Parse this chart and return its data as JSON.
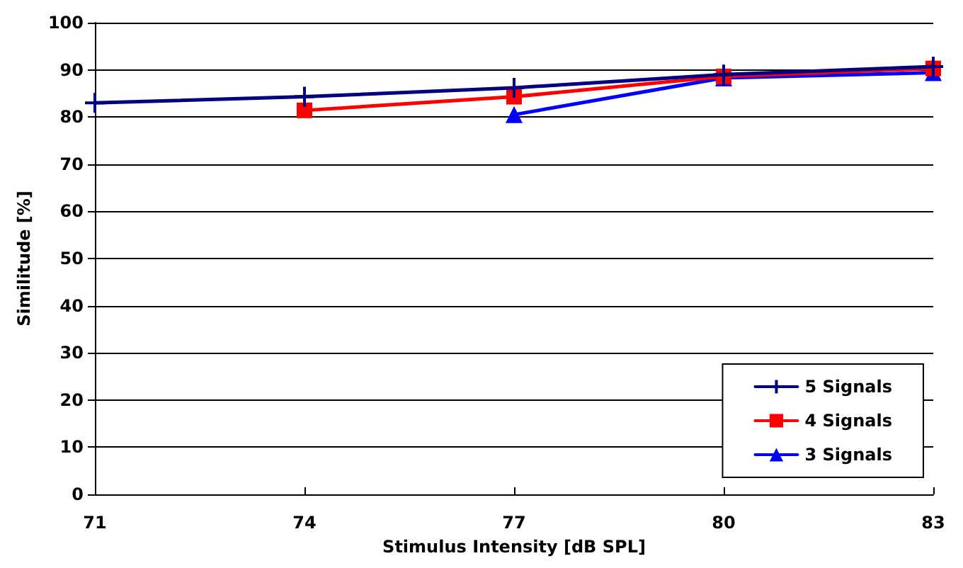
{
  "chart_data": {
    "type": "line",
    "xlabel": "Stimulus Intensity [dB SPL]",
    "ylabel": "Similitude [%]",
    "x": [
      71,
      74,
      77,
      80,
      83
    ],
    "xlim": [
      71,
      83
    ],
    "xticks": [
      71,
      74,
      77,
      80,
      83
    ],
    "ylim": [
      0,
      100
    ],
    "yticks": [
      0,
      10,
      20,
      30,
      40,
      50,
      60,
      70,
      80,
      90,
      100
    ],
    "grid": "y",
    "legend": "bottom right",
    "series": [
      {
        "name": "5 Signals",
        "color": "#000080",
        "marker": "cross",
        "values": [
          83,
          84.3,
          86.2,
          89,
          90.7
        ]
      },
      {
        "name": "4 Signals",
        "color": "#ff0000",
        "marker": "square",
        "values": [
          null,
          81.4,
          84.3,
          88.6,
          90.3
        ]
      },
      {
        "name": "3 Signals",
        "color": "#0000ff",
        "marker": "triangle",
        "values": [
          null,
          null,
          80.5,
          88.3,
          89.4
        ]
      }
    ]
  }
}
